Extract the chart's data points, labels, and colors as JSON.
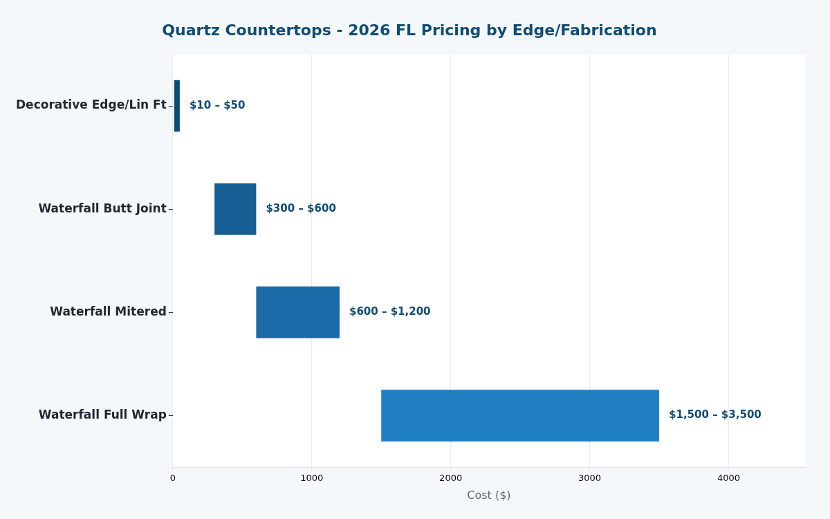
{
  "chart_data": {
    "type": "bar",
    "orientation": "horizontal",
    "title": "Quartz Countertops - 2026 FL Pricing by Edge/Fabrication",
    "xlabel": "Cost ($)",
    "categories": [
      "Decorative Edge/Lin Ft",
      "Waterfall Butt Joint",
      "Waterfall Mitered",
      "Waterfall Full Wrap"
    ],
    "base": [
      10,
      300,
      600,
      1500
    ],
    "values": [
      40,
      300,
      600,
      2000
    ],
    "colors": [
      "#0f4c75",
      "#155d93",
      "#1a6aa8",
      "#1f7fc1"
    ],
    "annotations": [
      {
        "text": "$10 – $50",
        "x": 50,
        "y": "Decorative Edge/Lin Ft"
      },
      {
        "text": "$300 – $600",
        "x": 600,
        "y": "Waterfall Butt Joint"
      },
      {
        "text": "$600 – $1,200",
        "x": 1200,
        "y": "Waterfall Mitered"
      },
      {
        "text": "$1,500 – $3,500",
        "x": 3500,
        "y": "Waterfall Full Wrap"
      }
    ],
    "xlim": [
      0,
      4550
    ],
    "xticks": [
      0,
      1000,
      2000,
      3000,
      4000
    ],
    "grid": "x",
    "legend": false
  }
}
